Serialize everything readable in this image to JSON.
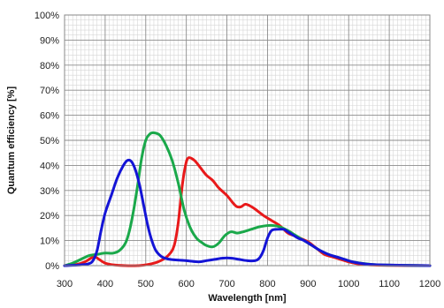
{
  "chart_data": {
    "type": "line",
    "title": "",
    "xlabel": "Wavelength [nm]",
    "ylabel": "Quantum efficiency [%]",
    "xlim": [
      300,
      1200
    ],
    "ylim": [
      0,
      100
    ],
    "x_ticks": [
      300,
      400,
      500,
      600,
      700,
      800,
      900,
      1000,
      1100,
      1200
    ],
    "x_tick_labels": [
      "300",
      "400",
      "500",
      "600",
      "700",
      "800",
      "900",
      "1000",
      "1100",
      "1200"
    ],
    "y_ticks": [
      0,
      10,
      20,
      30,
      40,
      50,
      60,
      70,
      80,
      90,
      100
    ],
    "y_tick_labels": [
      "0%",
      "10%",
      "20%",
      "30%",
      "40%",
      "50%",
      "60%",
      "70%",
      "80%",
      "90%",
      "100%"
    ],
    "grid": true,
    "minor_grid": true,
    "legend": "none",
    "series": [
      {
        "color": "#e8191a",
        "points": [
          [
            300,
            0
          ],
          [
            330,
            0.5
          ],
          [
            350,
            1.5
          ],
          [
            365,
            3
          ],
          [
            375,
            3.5
          ],
          [
            385,
            2.5
          ],
          [
            400,
            1
          ],
          [
            420,
            0.3
          ],
          [
            450,
            0
          ],
          [
            480,
            0
          ],
          [
            500,
            0.3
          ],
          [
            530,
            1.5
          ],
          [
            555,
            4
          ],
          [
            570,
            8
          ],
          [
            580,
            17
          ],
          [
            590,
            32
          ],
          [
            598,
            40
          ],
          [
            605,
            43
          ],
          [
            620,
            42
          ],
          [
            635,
            39
          ],
          [
            650,
            36
          ],
          [
            665,
            34
          ],
          [
            680,
            31
          ],
          [
            700,
            28
          ],
          [
            715,
            25
          ],
          [
            725,
            23.5
          ],
          [
            735,
            23.5
          ],
          [
            745,
            24.5
          ],
          [
            755,
            24
          ],
          [
            770,
            22.5
          ],
          [
            790,
            20
          ],
          [
            810,
            18
          ],
          [
            830,
            16
          ],
          [
            850,
            13
          ],
          [
            865,
            12
          ],
          [
            880,
            11
          ],
          [
            900,
            9.5
          ],
          [
            920,
            7
          ],
          [
            940,
            4.5
          ],
          [
            960,
            3.5
          ],
          [
            980,
            2.5
          ],
          [
            1000,
            1.5
          ],
          [
            1020,
            0.8
          ],
          [
            1050,
            0.3
          ],
          [
            1100,
            0.1
          ],
          [
            1200,
            0
          ]
        ]
      },
      {
        "color": "#1aa84a",
        "points": [
          [
            300,
            0
          ],
          [
            320,
            1
          ],
          [
            340,
            2.5
          ],
          [
            360,
            4
          ],
          [
            380,
            4.5
          ],
          [
            400,
            5
          ],
          [
            420,
            5
          ],
          [
            435,
            6
          ],
          [
            450,
            9
          ],
          [
            460,
            14
          ],
          [
            470,
            22
          ],
          [
            480,
            32
          ],
          [
            490,
            43
          ],
          [
            500,
            50
          ],
          [
            510,
            52.5
          ],
          [
            520,
            53
          ],
          [
            535,
            52
          ],
          [
            550,
            48
          ],
          [
            565,
            42
          ],
          [
            580,
            33
          ],
          [
            595,
            22
          ],
          [
            610,
            15
          ],
          [
            625,
            11
          ],
          [
            640,
            9
          ],
          [
            650,
            8
          ],
          [
            665,
            7.5
          ],
          [
            680,
            9
          ],
          [
            695,
            12
          ],
          [
            710,
            13.5
          ],
          [
            725,
            13
          ],
          [
            740,
            13.5
          ],
          [
            760,
            14.5
          ],
          [
            780,
            15.5
          ],
          [
            800,
            16
          ],
          [
            815,
            16
          ],
          [
            830,
            15.5
          ],
          [
            850,
            14
          ],
          [
            870,
            12
          ],
          [
            890,
            10
          ],
          [
            910,
            8
          ],
          [
            930,
            6
          ],
          [
            950,
            4.5
          ],
          [
            970,
            3.5
          ],
          [
            990,
            2.5
          ],
          [
            1010,
            1.5
          ],
          [
            1040,
            0.8
          ],
          [
            1080,
            0.3
          ],
          [
            1200,
            0
          ]
        ]
      },
      {
        "color": "#1414d6",
        "points": [
          [
            300,
            0
          ],
          [
            340,
            0.3
          ],
          [
            360,
            0.8
          ],
          [
            370,
            2
          ],
          [
            380,
            6
          ],
          [
            390,
            14
          ],
          [
            400,
            21
          ],
          [
            415,
            28
          ],
          [
            430,
            35
          ],
          [
            445,
            40
          ],
          [
            455,
            42
          ],
          [
            465,
            41.5
          ],
          [
            475,
            38
          ],
          [
            485,
            32
          ],
          [
            495,
            24
          ],
          [
            505,
            16
          ],
          [
            515,
            10
          ],
          [
            525,
            6
          ],
          [
            540,
            3.5
          ],
          [
            560,
            2.5
          ],
          [
            600,
            2
          ],
          [
            630,
            1.5
          ],
          [
            650,
            2
          ],
          [
            670,
            2.5
          ],
          [
            690,
            3
          ],
          [
            710,
            3
          ],
          [
            730,
            2.5
          ],
          [
            750,
            2
          ],
          [
            770,
            2
          ],
          [
            780,
            3
          ],
          [
            790,
            6
          ],
          [
            800,
            11
          ],
          [
            810,
            14
          ],
          [
            825,
            14.5
          ],
          [
            840,
            14.5
          ],
          [
            850,
            13.5
          ],
          [
            860,
            12.5
          ],
          [
            875,
            11
          ],
          [
            890,
            10
          ],
          [
            910,
            8
          ],
          [
            930,
            6
          ],
          [
            950,
            4.5
          ],
          [
            970,
            3.5
          ],
          [
            990,
            2.5
          ],
          [
            1010,
            1.5
          ],
          [
            1040,
            0.7
          ],
          [
            1080,
            0.3
          ],
          [
            1200,
            0
          ]
        ]
      }
    ]
  }
}
